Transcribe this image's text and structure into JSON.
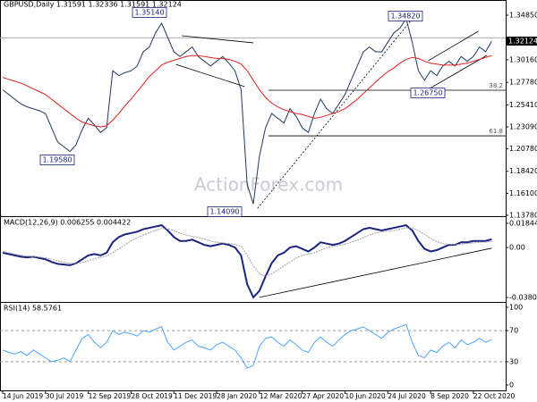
{
  "chart_data": [
    {
      "type": "line",
      "title": "GBPUSD,Daily 1.31591 1.32336 1.31591 1.32124",
      "watermark": "ActionForex.com",
      "ylim": [
        1.1369,
        1.3551
      ],
      "yticks": [
        {
          "value": 1.3485,
          "label": "1.34850"
        },
        {
          "value": 1.3016,
          "label": "1.30160"
        },
        {
          "value": 1.2778,
          "label": "1.27780"
        },
        {
          "value": 1.2541,
          "label": "1.25410"
        },
        {
          "value": 1.2309,
          "label": "1.23090"
        },
        {
          "value": 1.2078,
          "label": "1.20780"
        },
        {
          "value": 1.1842,
          "label": "1.18420"
        },
        {
          "value": 1.161,
          "label": "1.16100"
        },
        {
          "value": 1.1378,
          "label": "1.13780"
        }
      ],
      "last_price": 1.32124,
      "series": [
        {
          "color": "#1f3a60",
          "values": [
            1.27,
            1.265,
            1.26,
            1.255,
            1.252,
            1.25,
            1.248,
            1.245,
            1.23,
            1.215,
            1.21,
            1.205,
            1.212,
            1.228,
            1.24,
            1.233,
            1.225,
            1.23,
            1.29,
            1.285,
            1.288,
            1.29,
            1.295,
            1.31,
            1.315,
            1.33,
            1.34,
            1.325,
            1.31,
            1.305,
            1.31,
            1.315,
            1.305,
            1.3,
            1.295,
            1.3,
            1.305,
            1.298,
            1.29,
            1.27,
            1.17,
            1.15,
            1.2,
            1.23,
            1.245,
            1.24,
            1.235,
            1.25,
            1.242,
            1.23,
            1.225,
            1.245,
            1.26,
            1.25,
            1.245,
            1.255,
            1.265,
            1.28,
            1.295,
            1.31,
            1.315,
            1.31,
            1.31,
            1.32,
            1.33,
            1.335,
            1.345,
            1.32,
            1.29,
            1.28,
            1.29,
            1.285,
            1.295,
            1.3,
            1.295,
            1.305,
            1.3,
            1.305,
            1.315,
            1.31,
            1.3212
          ]
        },
        {
          "color": "#e02020",
          "values": [
            1.283,
            1.281,
            1.279,
            1.277,
            1.274,
            1.271,
            1.268,
            1.265,
            1.26,
            1.255,
            1.25,
            1.245,
            1.24,
            1.236,
            1.234,
            1.232,
            1.231,
            1.232,
            1.238,
            1.245,
            1.253,
            1.26,
            1.268,
            1.276,
            1.284,
            1.29,
            1.296,
            1.299,
            1.301,
            1.303,
            1.305,
            1.306,
            1.306,
            1.305,
            1.304,
            1.303,
            1.303,
            1.302,
            1.3,
            1.297,
            1.29,
            1.28,
            1.27,
            1.262,
            1.256,
            1.252,
            1.249,
            1.247,
            1.245,
            1.244,
            1.242,
            1.24,
            1.241,
            1.243,
            1.245,
            1.247,
            1.25,
            1.255,
            1.26,
            1.266,
            1.272,
            1.278,
            1.284,
            1.289,
            1.293,
            1.298,
            1.302,
            1.304,
            1.303,
            1.3,
            1.298,
            1.297,
            1.296,
            1.296,
            1.296,
            1.297,
            1.298,
            1.3,
            1.302,
            1.304,
            1.306
          ]
        }
      ],
      "hlines": [
        1.3247
      ],
      "fib_levels": [
        {
          "label": "38.2",
          "value": 1.2695
        },
        {
          "label": "61.8",
          "value": 1.2215
        }
      ],
      "trendlines": [
        {
          "x": [
            29.3,
            41
          ],
          "y": [
            1.3269,
            1.3194
          ]
        },
        {
          "x": [
            28.3,
            39.6
          ],
          "y": [
            1.2968,
            1.2733
          ]
        },
        {
          "x": [
            69.6,
            77.8
          ],
          "y": [
            1.3005,
            1.3316
          ]
        },
        {
          "x": [
            69.6,
            79.2
          ],
          "y": [
            1.2704,
            1.3062
          ]
        }
      ],
      "dashed_trendlines": [
        {
          "x": [
            41.7,
            66.9
          ],
          "y": [
            1.1453,
            1.3438
          ]
        }
      ],
      "annotations": [
        "1.35140",
        "1.19580",
        "1.14090",
        "1.34820",
        "1.26750"
      ]
    },
    {
      "type": "line",
      "title": "MACD(12,26,9) 0.006255 0.004422",
      "ylim": [
        -0.0415,
        0.02321
      ],
      "yticks": [
        0.018442,
        {
          "value": 0,
          "label": "0.00"
        },
        -0.038095
      ],
      "series": [
        {
          "color": "#1a237e",
          "values": [
            -0.004,
            -0.005,
            -0.006,
            -0.007,
            -0.0075,
            -0.007,
            -0.008,
            -0.009,
            -0.011,
            -0.0125,
            -0.013,
            -0.0135,
            -0.012,
            -0.009,
            -0.006,
            -0.005,
            -0.006,
            -0.004,
            0.004,
            0.008,
            0.01,
            0.011,
            0.012,
            0.014,
            0.015,
            0.016,
            0.017,
            0.013,
            0.008,
            0.005,
            0.005,
            0.006,
            0.004,
            0.002,
            0.001,
            0.002,
            0.003,
            0.002,
            0,
            -0.006,
            -0.028,
            -0.038,
            -0.033,
            -0.022,
            -0.012,
            -0.006,
            -0.004,
            0,
            0.001,
            -0.001,
            -0.003,
            0,
            0.004,
            0.003,
            0.002,
            0.003,
            0.005,
            0.008,
            0.011,
            0.014,
            0.015,
            0.014,
            0.013,
            0.014,
            0.015,
            0.016,
            0.017,
            0.013,
            0.005,
            -0.001,
            -0.003,
            -0.002,
            0,
            0.002,
            0.002,
            0.004,
            0.004,
            0.005,
            0.005,
            0.005,
            0.006255
          ]
        },
        {
          "color": "#a0a0a0",
          "values": [
            -0.003,
            -0.004,
            -0.005,
            -0.006,
            -0.0065,
            -0.0068,
            -0.0072,
            -0.0078,
            -0.009,
            -0.0102,
            -0.0112,
            -0.012,
            -0.0122,
            -0.0115,
            -0.01,
            -0.0085,
            -0.0075,
            -0.0065,
            -0.004,
            -0.001,
            0.002,
            0.005,
            0.0075,
            0.0095,
            0.0115,
            0.013,
            0.0145,
            0.0145,
            0.013,
            0.011,
            0.0095,
            0.0085,
            0.0075,
            0.0065,
            0.005,
            0.004,
            0.0035,
            0.003,
            0.0025,
            0.001,
            -0.006,
            -0.014,
            -0.02,
            -0.022,
            -0.02,
            -0.017,
            -0.014,
            -0.011,
            -0.008,
            -0.006,
            -0.005,
            -0.004,
            -0.002,
            0,
            0.001,
            0.0015,
            0.0025,
            0.004,
            0.0055,
            0.0075,
            0.0095,
            0.011,
            0.012,
            0.0125,
            0.013,
            0.014,
            0.015,
            0.015,
            0.013,
            0.01,
            0.007,
            0.0045,
            0.003,
            0.0025,
            0.0022,
            0.0025,
            0.003,
            0.0035,
            0.004,
            0.0042,
            0.004422
          ]
        }
      ],
      "trendlines": [
        {
          "x": [
            42,
            80
          ],
          "y": [
            -0.038,
            -0.0005
          ]
        }
      ]
    },
    {
      "type": "line",
      "title": "RSI(14) 58.5761",
      "ylim": [
        -6.9,
        105.8
      ],
      "yticks": [
        100,
        70,
        30,
        0
      ],
      "levels": [
        70,
        30
      ],
      "categories": [
        "14 Jun 2019",
        null,
        null,
        null,
        null,
        null,
        null,
        "30 Jul 2019",
        null,
        null,
        null,
        null,
        null,
        null,
        "12 Sep 2019",
        null,
        null,
        null,
        null,
        null,
        null,
        "28 Oct 2019",
        null,
        null,
        null,
        null,
        null,
        null,
        "11 Dec 2019",
        null,
        null,
        null,
        null,
        null,
        null,
        "28 Jan 2020",
        null,
        null,
        null,
        null,
        null,
        null,
        "12 Mar 2020",
        null,
        null,
        null,
        null,
        null,
        null,
        "27 Apr 2020",
        null,
        null,
        null,
        null,
        null,
        null,
        "10 Jun 2020",
        null,
        null,
        null,
        null,
        null,
        null,
        "24 Jul 2020",
        null,
        null,
        null,
        null,
        null,
        null,
        "8 Sep 2020",
        null,
        null,
        null,
        null,
        null,
        null,
        "22 Oct 2020",
        null,
        null,
        null
      ],
      "series": [
        {
          "color": "#4da6ff",
          "values": [
            45,
            42,
            40,
            43,
            38,
            45,
            40,
            35,
            30,
            32,
            35,
            30,
            45,
            60,
            65,
            55,
            48,
            55,
            70,
            65,
            68,
            66,
            63,
            70,
            68,
            72,
            75,
            55,
            45,
            50,
            55,
            58,
            50,
            48,
            45,
            52,
            55,
            50,
            45,
            35,
            22,
            25,
            50,
            60,
            62,
            55,
            50,
            58,
            52,
            45,
            42,
            55,
            62,
            55,
            50,
            58,
            65,
            70,
            72,
            75,
            70,
            65,
            60,
            68,
            72,
            75,
            78,
            55,
            38,
            35,
            45,
            42,
            50,
            55,
            48,
            58,
            52,
            55,
            60,
            55,
            58.5761
          ]
        }
      ]
    }
  ]
}
